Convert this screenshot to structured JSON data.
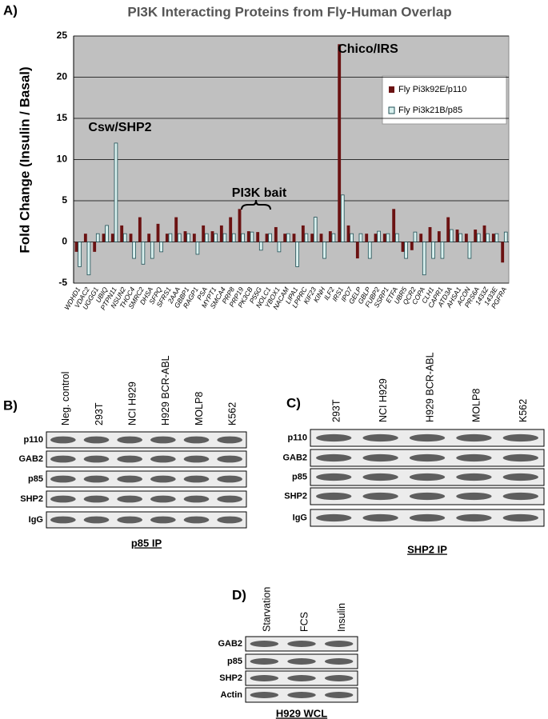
{
  "chart_data": {
    "type": "bar",
    "panel_label": "A)",
    "title": "PI3K Interacting Proteins from Fly-Human Overlap",
    "y_label": "Fold Change (Insulin / Basal)",
    "categories": [
      "WDHD1",
      "VDAC2",
      "UGGG1",
      "UBIQ",
      "PTPN11",
      "NSUN2",
      "THOC4",
      "SMRC2",
      "DHSA",
      "SFPQ",
      "SFRS1",
      "2AAA",
      "GBBP1",
      "RAGP1",
      "PSA",
      "MYPT1",
      "SMCA4",
      "PRP8",
      "PRP19",
      "PK3CB",
      "P55G",
      "NOLC1",
      "YBOX1",
      "NACAM",
      "LIPA1",
      "LPPRC",
      "KIF23",
      "KINH",
      "ILF2",
      "IRS1",
      "IPO7",
      "GELP",
      "GBLP",
      "FUBP2",
      "SSRP1",
      "ETFA",
      "UBR5",
      "QCR2",
      "COPA",
      "CLH1",
      "CAPR1",
      "ATD3A",
      "AHSA1",
      "ACON",
      "PRS6A",
      "1433Z",
      "1433E",
      "PGFRA"
    ],
    "series": [
      {
        "name": "Fly Pi3k92E/p110",
        "color": "#6b1212",
        "values": [
          -1.2,
          1,
          -1.2,
          1,
          1,
          2,
          1,
          3,
          1,
          2.2,
          1,
          3,
          1.3,
          1,
          2,
          1.3,
          2,
          3,
          4,
          1.3,
          1.2,
          1,
          1.8,
          1,
          1,
          2,
          1,
          1,
          1.3,
          24,
          2,
          -2,
          1,
          1,
          1,
          4,
          -1.2,
          -1,
          1,
          1.8,
          1.3,
          3,
          1.5,
          1,
          1.5,
          2,
          1,
          -2.5
        ]
      },
      {
        "name": "Fly Pi3k21B/p85",
        "color": "#d9f0ee",
        "values": [
          -3,
          -4,
          1,
          2,
          12,
          1,
          -2,
          -2.7,
          -2,
          -1.2,
          1,
          1,
          1,
          -1.5,
          1,
          1,
          1,
          1,
          1,
          1.2,
          -1,
          1,
          -1.2,
          1,
          -3,
          1,
          3,
          -2,
          1,
          5.7,
          1,
          1,
          -2,
          1.3,
          1,
          1,
          -2,
          1.2,
          -4,
          -2,
          -2,
          1.5,
          1,
          -2,
          1,
          1,
          1,
          1.2
        ]
      }
    ],
    "ylim": [
      -5,
      25
    ],
    "yticks": [
      -5,
      0,
      5,
      10,
      15,
      20,
      25
    ],
    "grid": true,
    "annotations": [
      "Csw/SHP2",
      "PI3K bait",
      "Chico/IRS"
    ]
  },
  "blots": [
    {
      "label": "B)",
      "lanes": [
        "Neg. control",
        "293T",
        "NCI H929",
        "H929 BCR-ABL",
        "MOLP8",
        "K562"
      ],
      "rows": [
        "p110",
        "GAB2",
        "p85",
        "SHP2",
        "IgG"
      ],
      "caption": "p85 IP"
    },
    {
      "label": "C)",
      "lanes": [
        "293T",
        "NCI H929",
        "H929 BCR-ABL",
        "MOLP8",
        "K562"
      ],
      "rows": [
        "p110",
        "GAB2",
        "p85",
        "SHP2",
        "IgG"
      ],
      "caption": "SHP2 IP"
    },
    {
      "label": "D)",
      "lanes": [
        "Starvation",
        "FCS",
        "Insulin"
      ],
      "rows": [
        "GAB2",
        "p85",
        "SHP2",
        "Actin"
      ],
      "caption": "H929 WCL"
    }
  ]
}
